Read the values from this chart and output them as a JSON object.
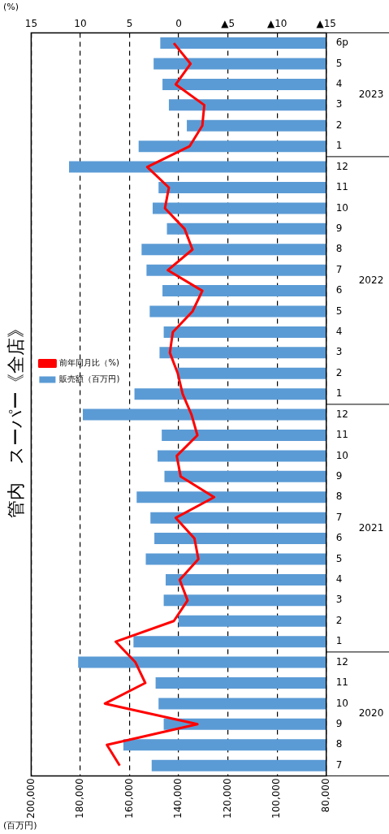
{
  "chart_data": {
    "type": "bar",
    "orientation": "horizontal",
    "title": "管内　スーパー《全店》",
    "xlabel": "(百万円)",
    "x2label": "(%)",
    "categories": [
      "6p",
      "5",
      "4",
      "3",
      "2",
      "1",
      "12",
      "11",
      "10",
      "9",
      "8",
      "7",
      "6",
      "5",
      "4",
      "3",
      "2",
      "1",
      "12",
      "11",
      "10",
      "9",
      "8",
      "7",
      "6",
      "5",
      "4",
      "3",
      "2",
      "1",
      "12",
      "11",
      "10",
      "9",
      "8",
      "7"
    ],
    "series": [
      {
        "name": "販売額（百万円)",
        "type": "bar",
        "color": "#5b9bd5",
        "values": [
          147500,
          150200,
          146600,
          144000,
          136700,
          156300,
          184600,
          148200,
          150600,
          144800,
          155100,
          153100,
          146600,
          151800,
          146100,
          147800,
          140600,
          158000,
          179000,
          146900,
          148600,
          145800,
          157100,
          151500,
          149900,
          153400,
          145300,
          146100,
          140100,
          158400,
          180900,
          149400,
          148200,
          146100,
          162500,
          151000
        ]
      },
      {
        "name": "前年同月比（%)",
        "type": "line",
        "color": "#ff0000",
        "axis": "x2",
        "values": [
          0.5,
          -1.2,
          0.3,
          -2.6,
          -2.4,
          -1.1,
          3.2,
          1.0,
          1.4,
          -0.6,
          -1.4,
          1.1,
          -2.4,
          -1.4,
          0.6,
          0.9,
          0.1,
          -0.4,
          -1.3,
          -1.9,
          0.2,
          -0.2,
          -3.6,
          0.3,
          -1.6,
          -2.0,
          -0.1,
          -0.9,
          0.5,
          6.4,
          4.4,
          3.4,
          7.5,
          -1.9,
          7.3,
          6.0
        ]
      }
    ],
    "xlim": [
      200000,
      80000
    ],
    "xticks": [
      {
        "value": 200000,
        "label": "200,000"
      },
      {
        "value": 180000,
        "label": "180,000"
      },
      {
        "value": 160000,
        "label": "160,000"
      },
      {
        "value": 140000,
        "label": "140,000"
      },
      {
        "value": 120000,
        "label": "120,000"
      },
      {
        "value": 100000,
        "label": "100,000"
      },
      {
        "value": 80000,
        "label": "80,000"
      }
    ],
    "x2lim": [
      15,
      -15
    ],
    "x2ticks": [
      15,
      10,
      5,
      0,
      {
        "value": -5,
        "label": "▲5"
      },
      {
        "value": -10,
        "label": "▲10"
      },
      {
        "value": -15,
        "label": "▲15"
      }
    ],
    "grid": "x",
    "legend": "left",
    "marker": "none",
    "annotations": [
      "2023",
      "2022",
      "2021",
      "2020"
    ]
  }
}
